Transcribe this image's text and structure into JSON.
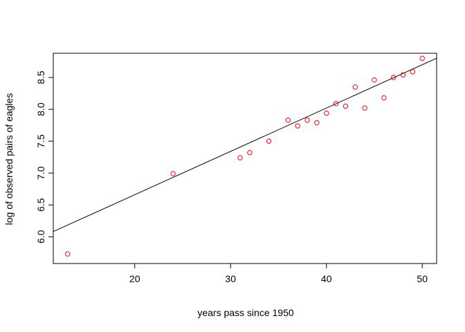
{
  "chart_data": {
    "type": "scatter",
    "title": "",
    "xlabel": "years pass since 1950",
    "ylabel": "log of observed pairs of eagles",
    "xlim": [
      11.5,
      51.5
    ],
    "ylim": [
      5.58,
      8.88
    ],
    "xticks": [
      20,
      30,
      40,
      50
    ],
    "yticks": [
      6.0,
      6.5,
      7.0,
      7.5,
      8.0,
      8.5
    ],
    "xtick_labels": [
      "20",
      "30",
      "40",
      "50"
    ],
    "ytick_labels": [
      "6.0",
      "6.5",
      "7.0",
      "7.5",
      "8.0",
      "8.5"
    ],
    "grid": false,
    "point_color": "#ff0000",
    "line_color": "#000000",
    "points": [
      {
        "x": 13,
        "y": 5.73
      },
      {
        "x": 24,
        "y": 6.99
      },
      {
        "x": 31,
        "y": 7.24
      },
      {
        "x": 32,
        "y": 7.32
      },
      {
        "x": 34,
        "y": 7.5
      },
      {
        "x": 36,
        "y": 7.83
      },
      {
        "x": 37,
        "y": 7.74
      },
      {
        "x": 38,
        "y": 7.83
      },
      {
        "x": 39,
        "y": 7.79
      },
      {
        "x": 40,
        "y": 7.94
      },
      {
        "x": 41,
        "y": 8.09
      },
      {
        "x": 42,
        "y": 8.05
      },
      {
        "x": 43,
        "y": 8.35
      },
      {
        "x": 44,
        "y": 8.02
      },
      {
        "x": 45,
        "y": 8.46
      },
      {
        "x": 46,
        "y": 8.18
      },
      {
        "x": 47,
        "y": 8.5
      },
      {
        "x": 48,
        "y": 8.54
      },
      {
        "x": 49,
        "y": 8.59
      },
      {
        "x": 50,
        "y": 8.8
      }
    ],
    "regression_line": {
      "intercept": 5.3,
      "slope": 0.068
    }
  }
}
